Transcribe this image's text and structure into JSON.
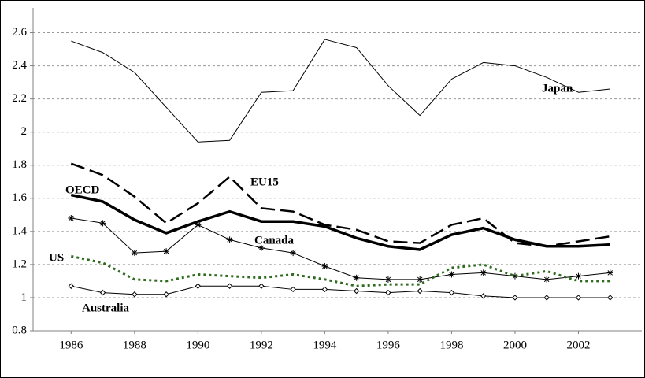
{
  "chart_data": {
    "type": "line",
    "x": [
      1986,
      1987,
      1988,
      1989,
      1990,
      1991,
      1992,
      1993,
      1994,
      1995,
      1996,
      1997,
      1998,
      1999,
      2000,
      2001,
      2002,
      2003
    ],
    "xlim": [
      1984.8,
      2004
    ],
    "xticks": [
      1986,
      1988,
      1990,
      1992,
      1994,
      1996,
      1998,
      2000,
      2002
    ],
    "ylim": [
      0.8,
      2.75
    ],
    "yticks": [
      0.8,
      1,
      1.2,
      1.4,
      1.6,
      1.8,
      2,
      2.2,
      2.4,
      2.6
    ],
    "grid": true,
    "series": [
      {
        "name": "Japan",
        "color": "#000000",
        "style": "thin",
        "marker": "none",
        "values": [
          2.55,
          2.48,
          2.36,
          2.15,
          1.94,
          1.95,
          2.24,
          2.25,
          2.56,
          2.51,
          2.28,
          2.1,
          2.32,
          2.42,
          2.4,
          2.33,
          2.24,
          2.26
        ]
      },
      {
        "name": "EU15",
        "color": "#000000",
        "style": "dashed",
        "marker": "none",
        "values": [
          1.81,
          1.74,
          1.61,
          1.45,
          1.57,
          1.73,
          1.54,
          1.52,
          1.44,
          1.41,
          1.34,
          1.33,
          1.44,
          1.48,
          1.33,
          1.31,
          1.34,
          1.37
        ]
      },
      {
        "name": "OECD",
        "color": "#000000",
        "style": "thick",
        "marker": "none",
        "values": [
          1.62,
          1.58,
          1.47,
          1.39,
          1.46,
          1.52,
          1.46,
          1.46,
          1.43,
          1.36,
          1.31,
          1.29,
          1.38,
          1.42,
          1.35,
          1.31,
          1.31,
          1.32
        ]
      },
      {
        "name": "Canada",
        "color": "#000000",
        "style": "thin",
        "marker": "asterisk",
        "values": [
          1.48,
          1.45,
          1.27,
          1.28,
          1.44,
          1.35,
          1.3,
          1.27,
          1.19,
          1.12,
          1.11,
          1.11,
          1.14,
          1.15,
          1.13,
          1.11,
          1.13,
          1.15
        ]
      },
      {
        "name": "US",
        "color": "#2e6b1e",
        "style": "dotted",
        "marker": "none",
        "values": [
          1.25,
          1.21,
          1.11,
          1.1,
          1.14,
          1.13,
          1.12,
          1.14,
          1.11,
          1.07,
          1.08,
          1.08,
          1.18,
          1.2,
          1.13,
          1.16,
          1.1,
          1.1
        ]
      },
      {
        "name": "Australia",
        "color": "#000000",
        "style": "thin",
        "marker": "diamond",
        "values": [
          1.07,
          1.03,
          1.02,
          1.02,
          1.07,
          1.07,
          1.07,
          1.05,
          1.05,
          1.04,
          1.03,
          1.04,
          1.03,
          1.01,
          1.0,
          1.0,
          1.0,
          1.0
        ]
      }
    ]
  }
}
